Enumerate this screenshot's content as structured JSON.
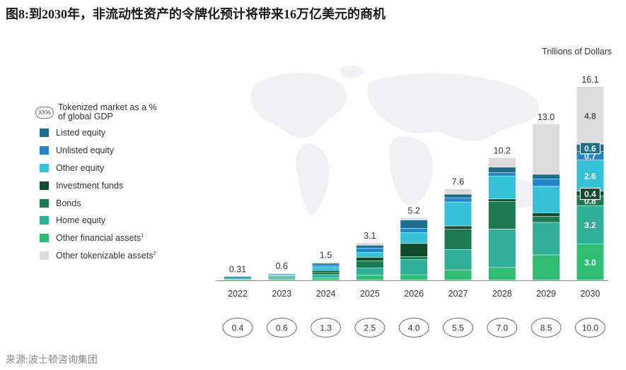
{
  "title": "图8:到2030年，非流动性资产的令牌化预计将带来16万亿美元的商机",
  "unit_label": "Trillions of Dollars",
  "source": "来源:波士顿咨询集团",
  "gdp_oval_sample": "XX%",
  "legend": {
    "gdp_label_line1": "Tokenized market as a %",
    "gdp_label_line2": "of global GDP",
    "items": [
      {
        "label": "Listed equity",
        "color": "#1b6e8c"
      },
      {
        "label": "Unlisted equity",
        "color": "#2385c8"
      },
      {
        "label": "Other equity",
        "color": "#35c2d9"
      },
      {
        "label": "Investment funds",
        "color": "#0f4d2c"
      },
      {
        "label": "Bonds",
        "color": "#1c7a52"
      },
      {
        "label": "Home equity",
        "color": "#2fae98"
      },
      {
        "label": "Other financial assets",
        "sup": "1",
        "color": "#2ebd73"
      },
      {
        "label": "Other tokenizable assets",
        "sup": "2",
        "color": "#dcdcdc"
      }
    ]
  },
  "chart_data": {
    "type": "bar",
    "stacked": true,
    "categories": [
      "2022",
      "2023",
      "2024",
      "2025",
      "2026",
      "2027",
      "2028",
      "2029",
      "2030"
    ],
    "totals": [
      "0.31",
      "0.6",
      "1.5",
      "3.1",
      "5.2",
      "7.6",
      "10.2",
      "13.0",
      "16.1"
    ],
    "gdp_percent": [
      "0.4",
      "0.6",
      "1.3",
      "2.5",
      "4.0",
      "5.5",
      "7.0",
      "8.5",
      "10.0"
    ],
    "series": [
      {
        "name": "Other financial assets",
        "color": "#2ebd73",
        "values": [
          0.08,
          0.1,
          0.2,
          0.4,
          0.45,
          0.85,
          1.05,
          2.1,
          3.0
        ]
      },
      {
        "name": "Home equity",
        "color": "#2fae98",
        "values": [
          0.08,
          0.12,
          0.25,
          0.6,
          1.25,
          1.7,
          3.2,
          2.7,
          3.2
        ]
      },
      {
        "name": "Bonds",
        "color": "#1c7a52",
        "values": [
          0.04,
          0.07,
          0.2,
          0.6,
          0.25,
          1.7,
          2.3,
          0.5,
          0.8
        ]
      },
      {
        "name": "Investment funds",
        "color": "#0f4d2c",
        "values": [
          0.03,
          0.06,
          0.15,
          0.3,
          1.1,
          0.25,
          0.2,
          0.3,
          0.4
        ]
      },
      {
        "name": "Other equity",
        "color": "#35c2d9",
        "values": [
          0.04,
          0.08,
          0.3,
          0.4,
          0.9,
          2.0,
          1.9,
          2.2,
          2.6
        ]
      },
      {
        "name": "Unlisted equity",
        "color": "#2385c8",
        "values": [
          0.02,
          0.05,
          0.15,
          0.35,
          0.35,
          0.35,
          0.3,
          0.6,
          0.7
        ]
      },
      {
        "name": "Listed equity",
        "color": "#1b6e8c",
        "values": [
          0.02,
          0.05,
          0.15,
          0.25,
          0.7,
          0.3,
          0.45,
          0.4,
          0.6
        ]
      },
      {
        "name": "Other tokenizable assets",
        "color": "#dcdcdc",
        "values": [
          0.0,
          0.07,
          0.1,
          0.2,
          0.2,
          0.45,
          0.8,
          4.2,
          4.8
        ]
      }
    ],
    "segment_labels_2030": [
      "3.0",
      "3.2",
      "0.8",
      "0.4",
      "2.6",
      "0.7",
      "0.6",
      "4.8"
    ],
    "ylim": [
      0,
      16.1
    ],
    "legend_position": "left"
  }
}
